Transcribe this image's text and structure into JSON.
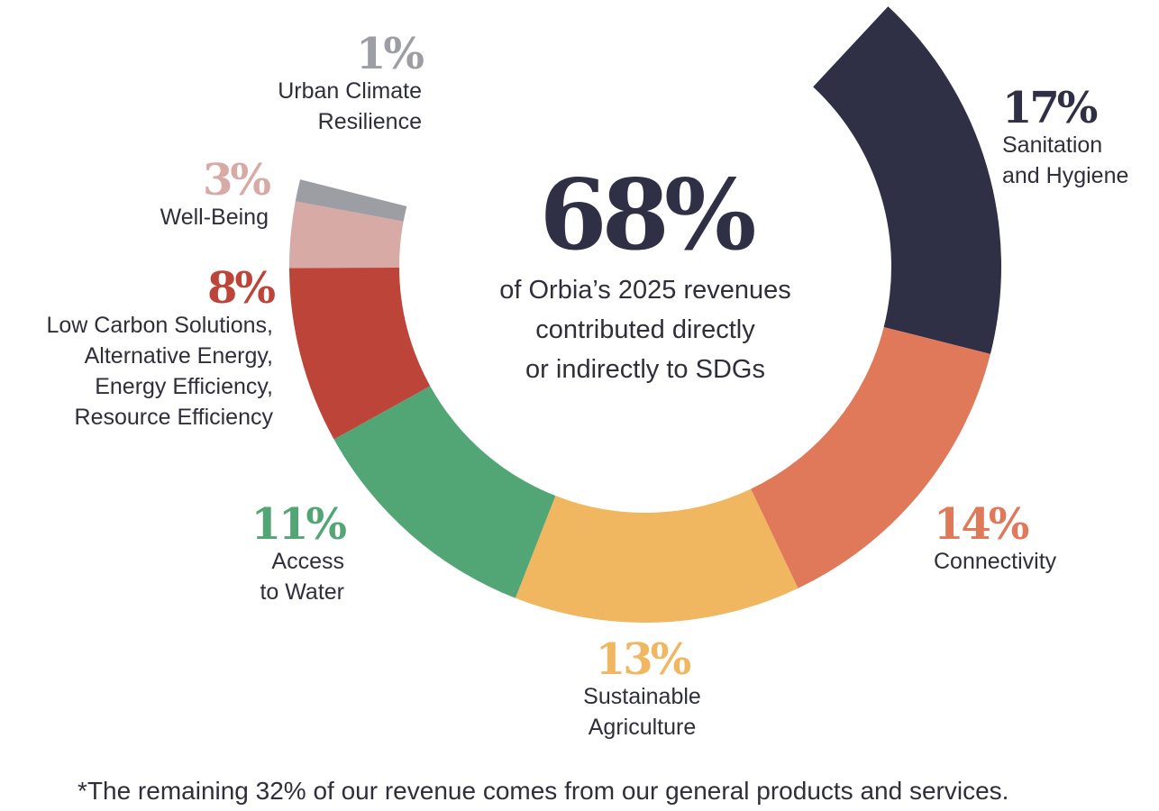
{
  "chart_data": {
    "type": "pie",
    "subtype": "partial-donut",
    "headline_value": "68%",
    "headline_text": "of Orbia’s 2025 revenues\ncontributed directly\nor indirectly to SDGs",
    "footnote": "*The remaining 32% of our revenue comes from our general products and services.",
    "total_shown_percent": 68,
    "segments": [
      {
        "name": "Sanitation and Hygiene",
        "value": 17,
        "label": "17%",
        "text": "Sanitation\nand Hygiene",
        "color": "#2f2f45"
      },
      {
        "name": "Connectivity",
        "value": 14,
        "label": "14%",
        "text": "Connectivity",
        "color": "#e0795a"
      },
      {
        "name": "Sustainable Agriculture",
        "value": 13,
        "label": "13%",
        "text": "Sustainable\nAgriculture",
        "color": "#f0b760"
      },
      {
        "name": "Access to Water",
        "value": 11,
        "label": "11%",
        "text": "Access\nto Water",
        "color": "#52a675"
      },
      {
        "name": "Low Carbon Solutions, Alternative Energy, Energy Efficiency, Resource Efficiency",
        "value": 8,
        "label": "8%",
        "text": "Low Carbon Solutions,\nAlternative Energy,\nEnergy Efficiency,\nResource Efficiency",
        "color": "#bc4439"
      },
      {
        "name": "Well-Being",
        "value": 3,
        "label": "3%",
        "text": "Well-Being",
        "color": "#d8aaa5"
      },
      {
        "name": "Urban Climate Resilience",
        "value": 1,
        "label": "1%",
        "text": "Urban Climate\nResilience",
        "color": "#9d9ea3"
      }
    ]
  }
}
